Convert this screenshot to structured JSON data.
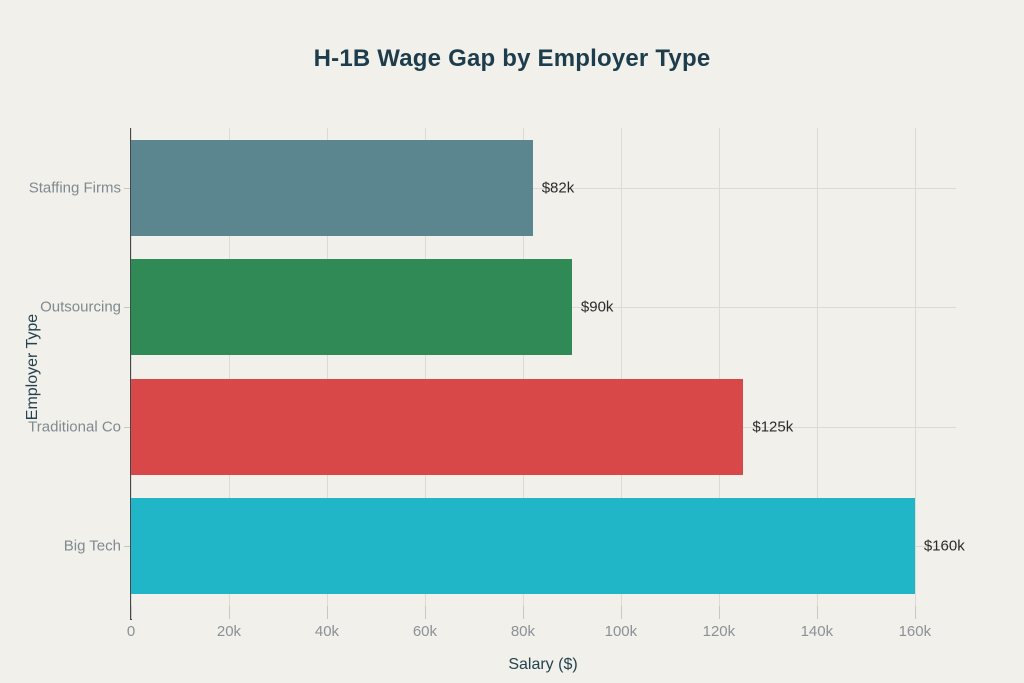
{
  "chart_data": {
    "type": "bar",
    "orientation": "horizontal",
    "title": "H-1B Wage Gap by Employer Type",
    "xlabel": "Salary ($)",
    "ylabel": "Employer Type",
    "categories": [
      "Staffing Firms",
      "Outsourcing",
      "Traditional Co",
      "Big Tech"
    ],
    "categories_order": "top-to-bottom",
    "values": [
      82000,
      90000,
      125000,
      160000
    ],
    "value_labels": [
      "$82k",
      "$90k",
      "$125k",
      "$160k"
    ],
    "bar_colors": [
      "#5b868f",
      "#2f8a56",
      "#d94848",
      "#21b5c8"
    ],
    "x_ticks": [
      0,
      20000,
      40000,
      60000,
      80000,
      100000,
      120000,
      140000,
      160000
    ],
    "x_tick_labels": [
      "0",
      "20k",
      "40k",
      "60k",
      "80k",
      "100k",
      "120k",
      "140k",
      "160k"
    ],
    "xlim": [
      0,
      168400
    ],
    "grid": true,
    "legend": "none"
  },
  "style": {
    "background": "#f1f0ea",
    "title_color": "#1d3d4c",
    "axis_title_color": "#24424f",
    "tick_label_color": "#8b9197",
    "category_label_color": "#7f8a90",
    "value_label_color": "#2b2b2b",
    "grid_color": "#dcdad2",
    "tick_mark_color": "#c9c7c0",
    "axis_line_color": "#43484b"
  }
}
